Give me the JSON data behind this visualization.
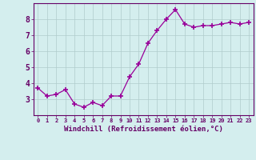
{
  "x": [
    0,
    1,
    2,
    3,
    4,
    5,
    6,
    7,
    8,
    9,
    10,
    11,
    12,
    13,
    14,
    15,
    16,
    17,
    18,
    19,
    20,
    21,
    22,
    23
  ],
  "y": [
    3.7,
    3.2,
    3.3,
    3.6,
    2.7,
    2.5,
    2.8,
    2.6,
    3.2,
    3.2,
    4.4,
    5.2,
    6.5,
    7.3,
    8.0,
    8.6,
    7.7,
    7.5,
    7.6,
    7.6,
    7.7,
    7.8,
    7.7,
    7.8
  ],
  "xlabel": "Windchill (Refroidissement éolien,°C)",
  "ylim": [
    2.0,
    9.0
  ],
  "yticks": [
    3,
    4,
    5,
    6,
    7,
    8
  ],
  "xlabels": [
    "0",
    "1",
    "2",
    "3",
    "4",
    "5",
    "6",
    "7",
    "8",
    "9",
    "10",
    "11",
    "12",
    "13",
    "14",
    "15",
    "16",
    "17",
    "18",
    "19",
    "20",
    "21",
    "22",
    "23"
  ],
  "line_color": "#990099",
  "marker_color": "#990099",
  "bg_color": "#d4eeee",
  "grid_color": "#b0cccc",
  "xlabel_color": "#660066",
  "tick_color": "#660066"
}
